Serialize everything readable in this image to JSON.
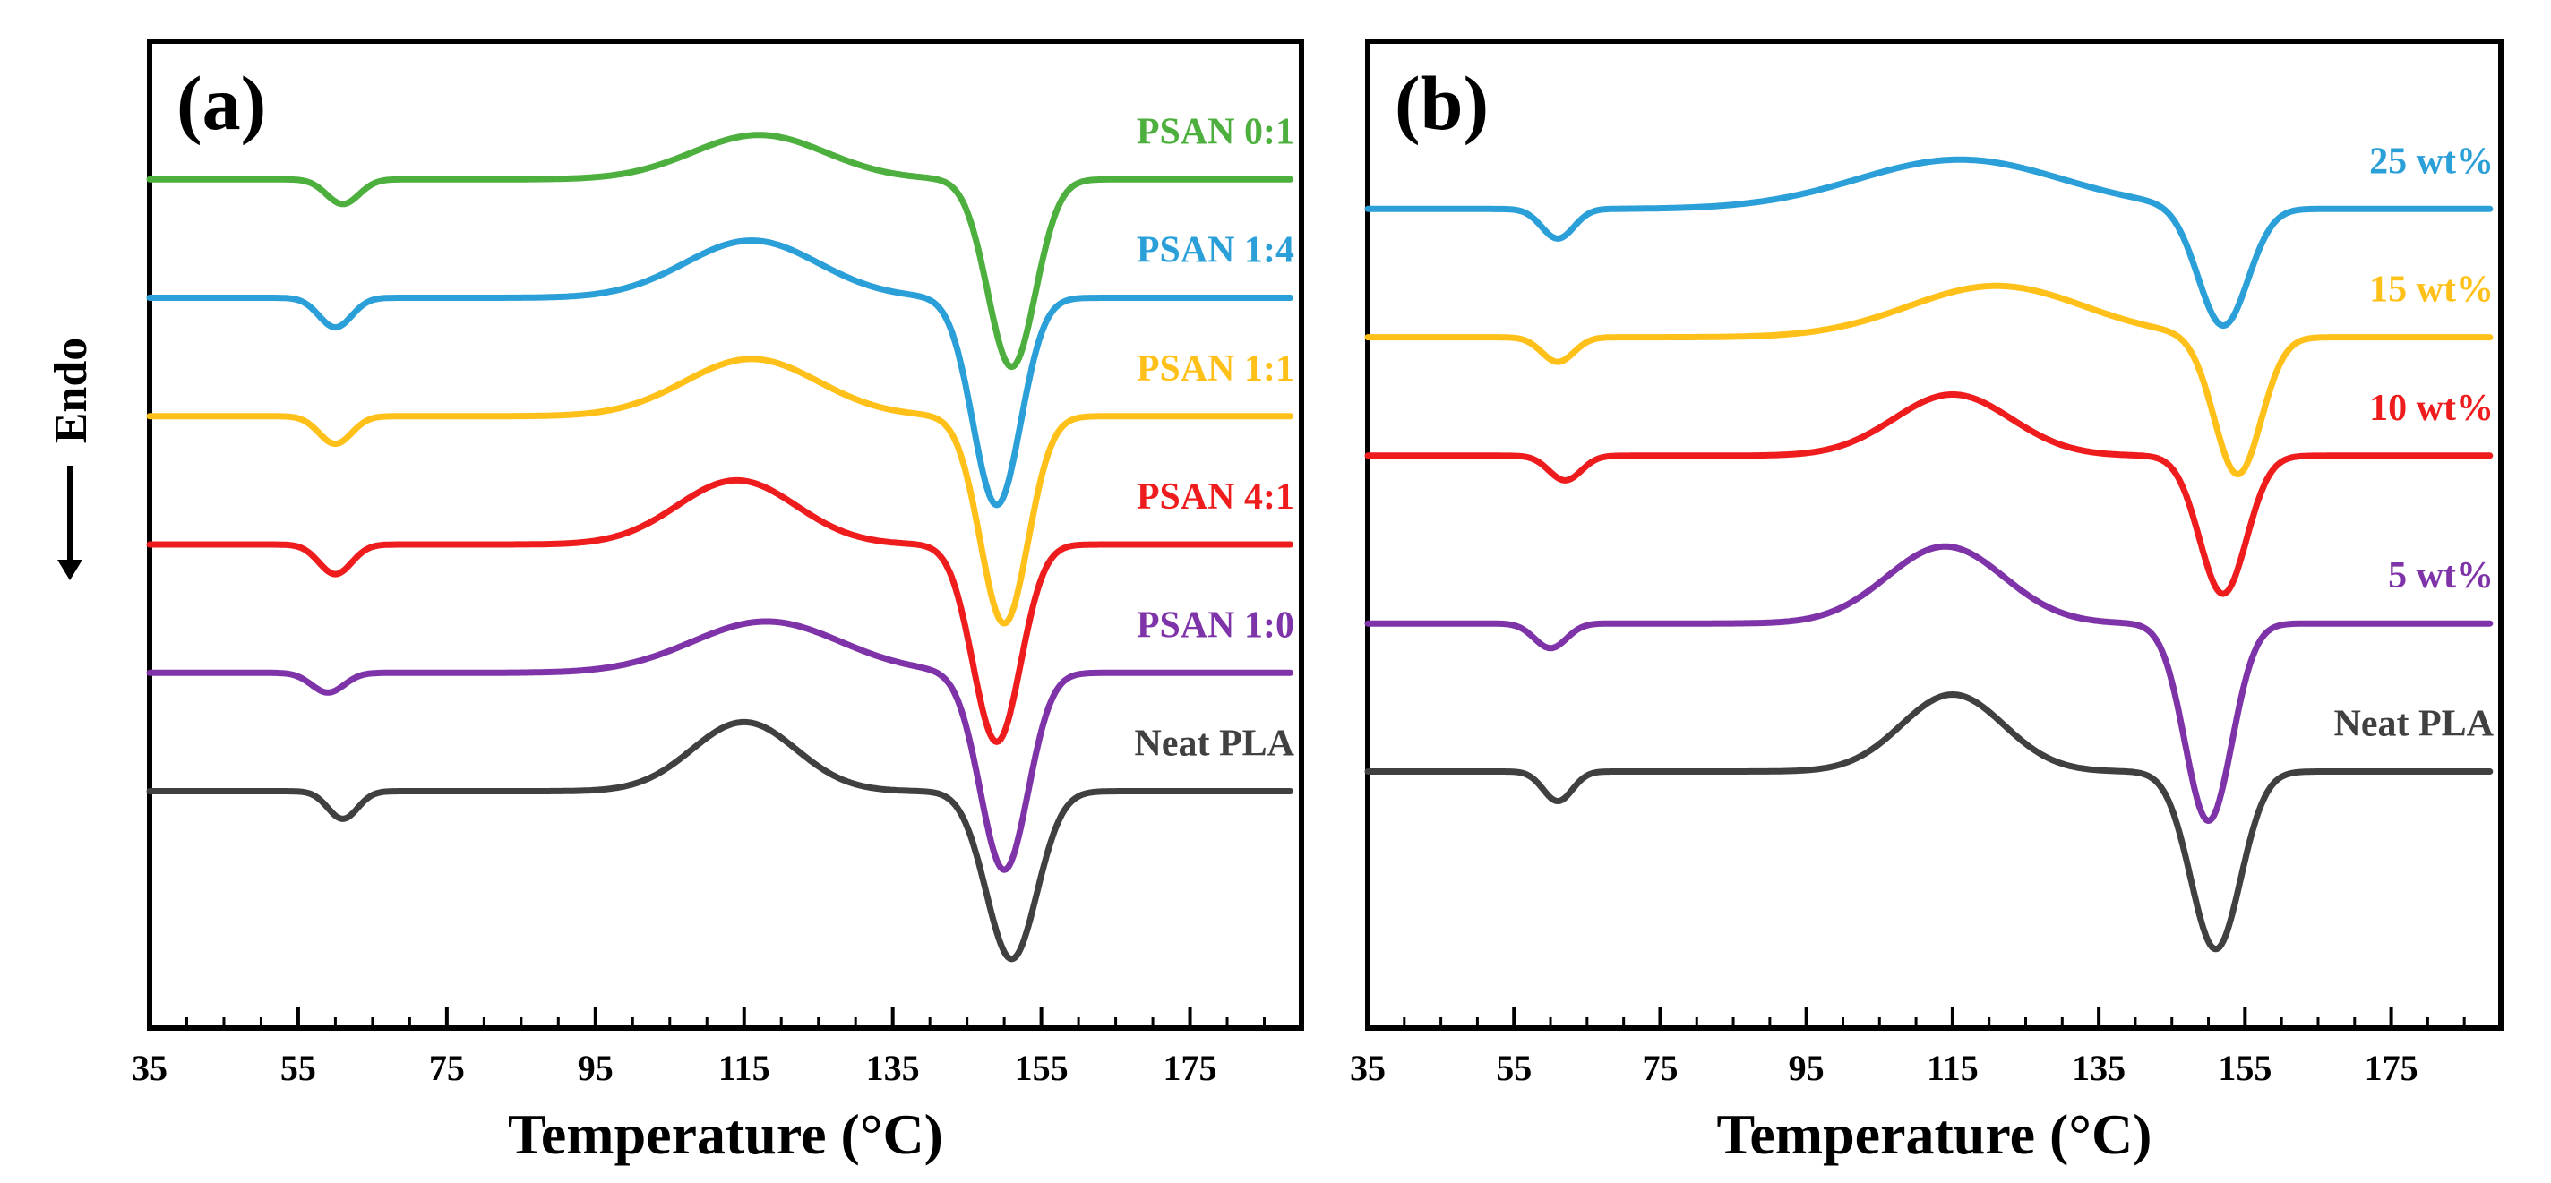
{
  "y_axis_label": "Endo",
  "chart_data": [
    {
      "type": "line",
      "panel_label": "(a)",
      "xlabel": "Temperature (°C)",
      "ylabel": "Endo",
      "xlim": [
        35,
        190
      ],
      "xticks": [
        35,
        55,
        75,
        95,
        115,
        135,
        155,
        175
      ],
      "ylim": [
        0,
        10
      ],
      "y_ticks_shown": false,
      "series": [
        {
          "name": "PSAN 0:1",
          "color": "#4DAF3D",
          "offset": 8.6,
          "peaks": [
            {
              "x": 61,
              "w": 2.2,
              "a": -0.25
            },
            {
              "x": 117,
              "w": 9,
              "a": 0.45
            },
            {
              "x": 151,
              "w": 3.2,
              "a": -1.9
            }
          ]
        },
        {
          "name": "PSAN 1:4",
          "color": "#2A9FD8",
          "offset": 7.4,
          "peaks": [
            {
              "x": 60,
              "w": 2.2,
              "a": -0.3
            },
            {
              "x": 116,
              "w": 9,
              "a": 0.58
            },
            {
              "x": 149,
              "w": 3.2,
              "a": -2.1
            }
          ]
        },
        {
          "name": "PSAN 1:1",
          "color": "#FFC119",
          "offset": 6.2,
          "peaks": [
            {
              "x": 60,
              "w": 2.2,
              "a": -0.28
            },
            {
              "x": 116,
              "w": 9,
              "a": 0.58
            },
            {
              "x": 150,
              "w": 3.2,
              "a": -2.1
            }
          ]
        },
        {
          "name": "PSAN 4:1",
          "color": "#EE1C1C",
          "offset": 4.9,
          "peaks": [
            {
              "x": 60,
              "w": 2.2,
              "a": -0.3
            },
            {
              "x": 114,
              "w": 8,
              "a": 0.65
            },
            {
              "x": 149,
              "w": 3.2,
              "a": -2.0
            }
          ]
        },
        {
          "name": "PSAN 1:0",
          "color": "#7E34A8",
          "offset": 3.6,
          "peaks": [
            {
              "x": 59,
              "w": 2.2,
              "a": -0.2
            },
            {
              "x": 118,
              "w": 10,
              "a": 0.52
            },
            {
              "x": 150,
              "w": 3.2,
              "a": -2.0
            }
          ]
        },
        {
          "name": "Neat PLA",
          "color": "#404040",
          "offset": 2.4,
          "peaks": [
            {
              "x": 61,
              "w": 2.0,
              "a": -0.28
            },
            {
              "x": 115,
              "w": 7,
              "a": 0.7
            },
            {
              "x": 151,
              "w": 3.4,
              "a": -1.7
            }
          ]
        }
      ]
    },
    {
      "type": "line",
      "panel_label": "(b)",
      "xlabel": "Temperature (°C)",
      "ylabel": "Endo",
      "xlim": [
        35,
        190
      ],
      "xticks": [
        35,
        55,
        75,
        95,
        115,
        135,
        155,
        175
      ],
      "ylim": [
        0,
        10
      ],
      "y_ticks_shown": false,
      "series": [
        {
          "name": "25 wt%",
          "color": "#2A9FD8",
          "offset": 8.3,
          "peaks": [
            {
              "x": 61,
              "w": 2.2,
              "a": -0.3
            },
            {
              "x": 116,
              "w": 14,
              "a": 0.5
            },
            {
              "x": 152,
              "w": 3.4,
              "a": -1.2
            }
          ]
        },
        {
          "name": "15 wt%",
          "color": "#FFC119",
          "offset": 7.0,
          "peaks": [
            {
              "x": 61,
              "w": 2.2,
              "a": -0.25
            },
            {
              "x": 121,
              "w": 12,
              "a": 0.52
            },
            {
              "x": 154,
              "w": 3.2,
              "a": -1.4
            }
          ]
        },
        {
          "name": "10 wt%",
          "color": "#EE1C1C",
          "offset": 5.8,
          "peaks": [
            {
              "x": 62,
              "w": 2.2,
              "a": -0.25
            },
            {
              "x": 115,
              "w": 8,
              "a": 0.62
            },
            {
              "x": 152,
              "w": 3.2,
              "a": -1.4
            }
          ]
        },
        {
          "name": "5 wt%",
          "color": "#7E34A8",
          "offset": 4.1,
          "peaks": [
            {
              "x": 60,
              "w": 2.2,
              "a": -0.25
            },
            {
              "x": 114,
              "w": 8,
              "a": 0.78
            },
            {
              "x": 150,
              "w": 3.2,
              "a": -2.0
            }
          ]
        },
        {
          "name": "Neat PLA",
          "color": "#404040",
          "offset": 2.6,
          "peaks": [
            {
              "x": 61,
              "w": 2.0,
              "a": -0.3
            },
            {
              "x": 115,
              "w": 7,
              "a": 0.78
            },
            {
              "x": 151,
              "w": 3.4,
              "a": -1.8
            }
          ]
        }
      ]
    }
  ]
}
